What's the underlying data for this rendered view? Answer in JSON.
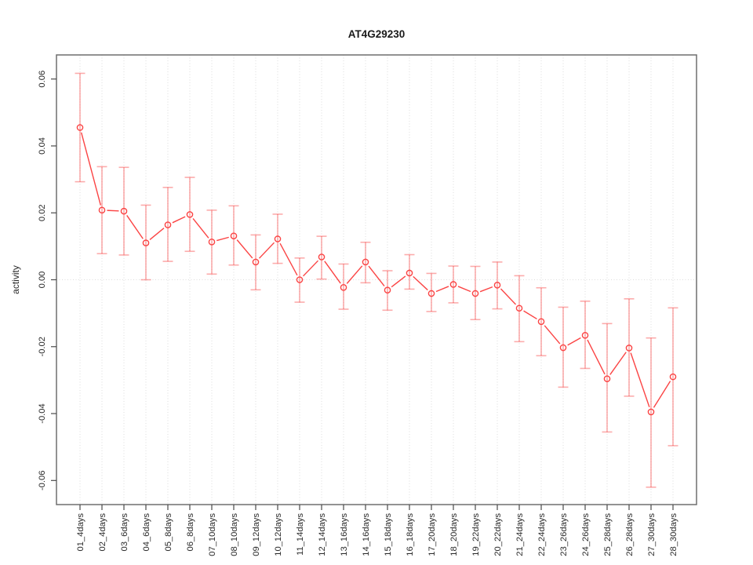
{
  "chart_data": {
    "type": "scatter",
    "title": "AT4G29230",
    "xlabel": "",
    "ylabel": "activity",
    "legend": {
      "visible": false
    },
    "grid": {
      "vertical_dotted_per_category": true,
      "horizontal_zero_line": true,
      "style": "dotted"
    },
    "categories": [
      "01_4days",
      "02_4days",
      "03_6days",
      "04_6days",
      "05_8days",
      "06_8days",
      "07_10days",
      "08_10days",
      "09_12days",
      "10_12days",
      "11_14days",
      "12_14days",
      "13_16days",
      "14_16days",
      "15_18days",
      "16_18days",
      "17_20days",
      "18_20days",
      "19_22days",
      "20_22days",
      "21_24days",
      "22_24days",
      "23_26days",
      "24_26days",
      "25_28days",
      "26_28days",
      "27_30days",
      "28_30days"
    ],
    "series": [
      {
        "name": "activity",
        "marker": "open-circle",
        "values": [
          0.0455,
          0.0208,
          0.0205,
          0.011,
          0.0164,
          0.0195,
          0.0113,
          0.0131,
          0.0053,
          0.0122,
          0.0,
          0.0068,
          -0.0023,
          0.0053,
          -0.0031,
          0.002,
          -0.0041,
          -0.0014,
          -0.0041,
          -0.0016,
          -0.0085,
          -0.0125,
          -0.0203,
          -0.0166,
          -0.0296,
          -0.0204,
          -0.0395,
          -0.029
        ],
        "error_high": [
          0.0617,
          0.0338,
          0.0336,
          0.0223,
          0.0276,
          0.0306,
          0.0208,
          0.0221,
          0.0134,
          0.0196,
          0.0065,
          0.013,
          0.0047,
          0.0112,
          0.0027,
          0.0075,
          0.0019,
          0.0041,
          0.004,
          0.0053,
          0.0012,
          -0.0024,
          -0.0082,
          -0.0064,
          -0.0131,
          -0.0057,
          -0.0174,
          -0.0084
        ],
        "error_low": [
          0.0293,
          0.0078,
          0.0074,
          0.0,
          0.0055,
          0.0085,
          0.0017,
          0.0044,
          -0.003,
          0.0049,
          -0.0067,
          0.0002,
          -0.0088,
          -0.0009,
          -0.0091,
          -0.0028,
          -0.0095,
          -0.0069,
          -0.0119,
          -0.0087,
          -0.0185,
          -0.0227,
          -0.0321,
          -0.0265,
          -0.0455,
          -0.0348,
          -0.062,
          -0.0496
        ]
      }
    ],
    "ylim": [
      -0.0672,
      0.0672
    ],
    "yticks": [
      -0.06,
      -0.04,
      -0.02,
      0.0,
      0.02,
      0.04,
      0.06
    ],
    "ytick_labels": [
      "-0.06",
      "-0.04",
      "-0.02",
      "0.00",
      "0.02",
      "0.04",
      "0.06"
    ],
    "colors": {
      "point_line": "#fb4444",
      "error_bar": "rgba(248,70,70,0.45)",
      "grid": "#dcdcdc",
      "axis_box": "#6f6f6f",
      "tick": "#4a4a4a",
      "text": "#1a1a1a",
      "background": "#ffffff"
    }
  }
}
